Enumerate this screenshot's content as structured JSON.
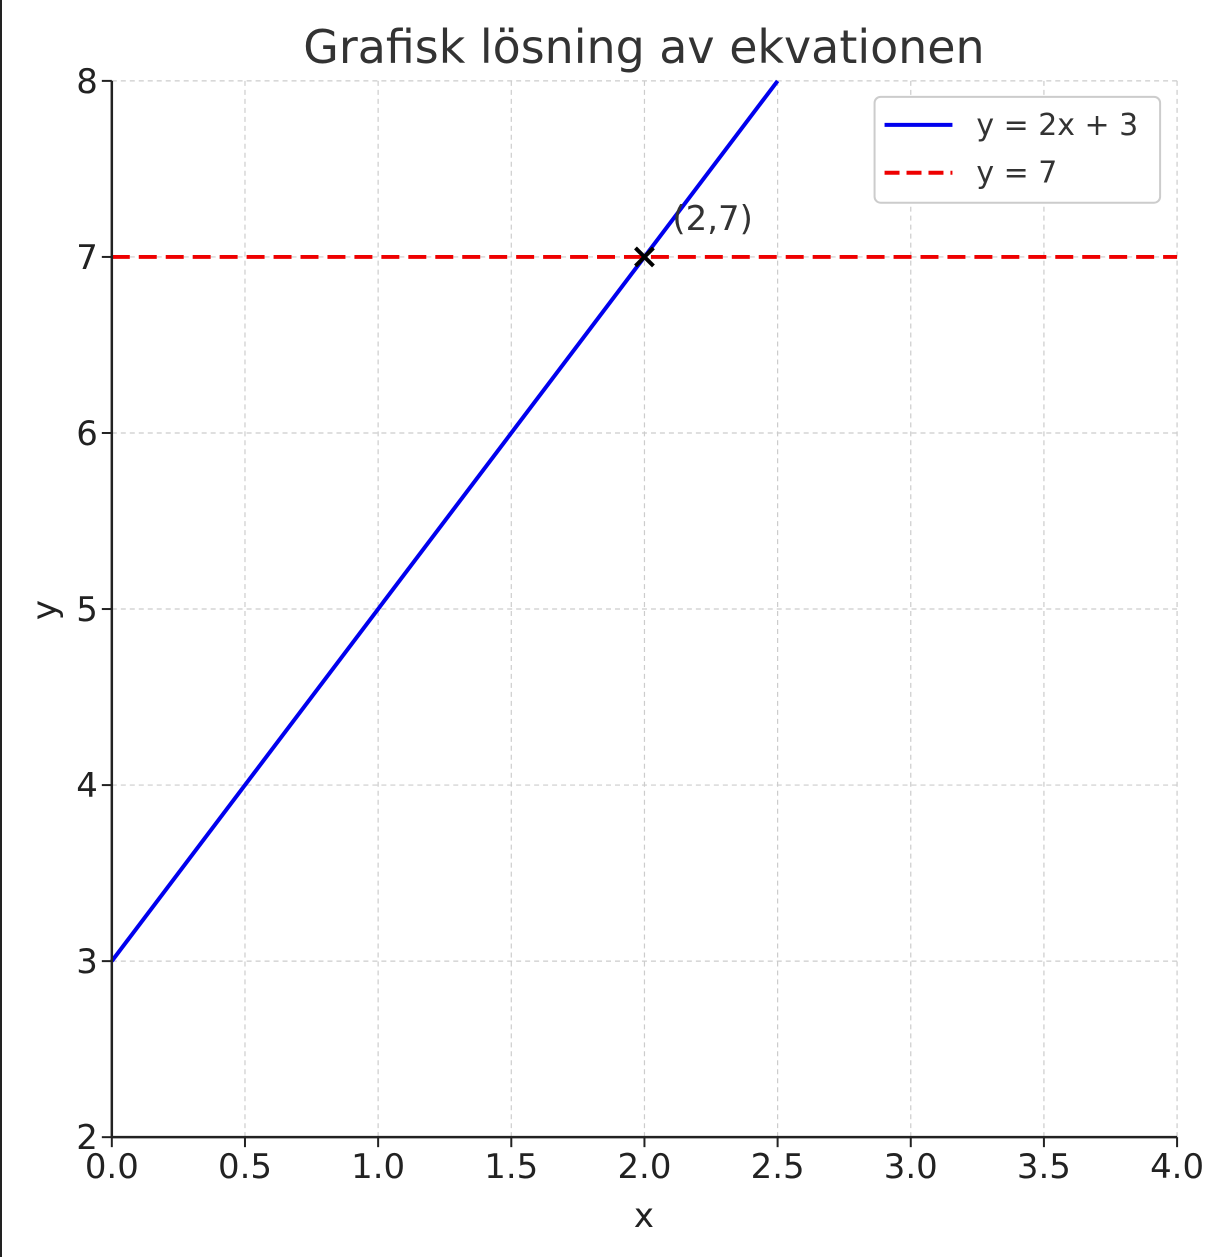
{
  "chart_data": {
    "type": "line",
    "title": "Grafisk lösning av ekvationen",
    "xlabel": "x",
    "ylabel": "y",
    "xlim": [
      0.0,
      4.0
    ],
    "ylim": [
      2,
      8
    ],
    "x_ticks": [
      "0.0",
      "0.5",
      "1.0",
      "1.5",
      "2.0",
      "2.5",
      "3.0",
      "3.5",
      "4.0"
    ],
    "x_tick_values": [
      0.0,
      0.5,
      1.0,
      1.5,
      2.0,
      2.5,
      3.0,
      3.5,
      4.0
    ],
    "y_ticks": [
      "2",
      "3",
      "4",
      "5",
      "6",
      "7",
      "8"
    ],
    "y_tick_values": [
      2,
      3,
      4,
      5,
      6,
      7,
      8
    ],
    "grid": true,
    "legend_position": "top-right",
    "series": [
      {
        "name": "y = 2x + 3",
        "color": "#0000ee",
        "line_style": "solid",
        "x": [
          0.0,
          2.5
        ],
        "y": [
          3.0,
          8.0
        ]
      },
      {
        "name": "y = 7",
        "color": "#ee0000",
        "line_style": "dashed",
        "x": [
          0.0,
          4.0
        ],
        "y": [
          7.0,
          7.0
        ]
      }
    ],
    "annotations": [
      {
        "text": "(2,7)",
        "x": 2.0,
        "y": 7.0,
        "marker": "x",
        "color": "#000000"
      }
    ]
  }
}
